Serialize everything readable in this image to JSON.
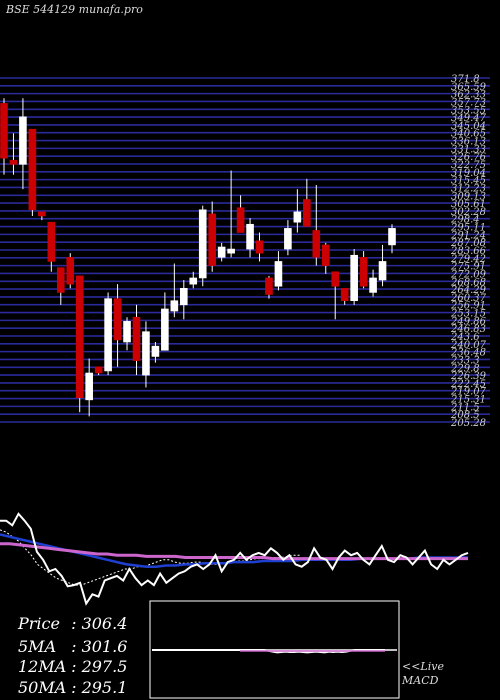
{
  "header": {
    "title": "BSE 544129 munafa.pro"
  },
  "chart_data": {
    "type": "candlestick",
    "price_axis": {
      "labels": [
        "371.8",
        "365.59",
        "362.33",
        "357.73",
        "353.55",
        "349.47",
        "345.04",
        "340.65",
        "336.13",
        "331.33",
        "326.76",
        "322.75",
        "319.04",
        "315.45",
        "312.23",
        "309.13",
        "305.61",
        "302.28",
        "298.4",
        "295.11",
        "291.24",
        "287.08",
        "283.66",
        "279.42",
        "275.91",
        "272.09",
        "268.68",
        "264.29",
        "260.37",
        "256.91",
        "253.15",
        "249.86",
        "246.83",
        "243.6",
        "240.07",
        "236.48",
        "233.3",
        "229.8",
        "226.39",
        "222.45",
        "219.07",
        "215.31",
        "211.5",
        "208.5",
        "205.28"
      ],
      "ylim": [
        205.28,
        371.8
      ]
    },
    "candles": [
      {
        "o": 359.5,
        "h": 362.0,
        "l": 325.0,
        "c": 333.0
      },
      {
        "o": 332.0,
        "h": 345.0,
        "l": 325.0,
        "c": 330.0
      },
      {
        "o": 330.0,
        "h": 362.0,
        "l": 318.0,
        "c": 353.0
      },
      {
        "o": 347.0,
        "h": 347.0,
        "l": 305.0,
        "c": 308.0
      },
      {
        "o": 307.0,
        "h": 307.0,
        "l": 303.0,
        "c": 305.0
      },
      {
        "o": 302.0,
        "h": 302.0,
        "l": 278.0,
        "c": 283.0
      },
      {
        "o": 280.0,
        "h": 280.0,
        "l": 262.0,
        "c": 268.0
      },
      {
        "o": 285.0,
        "h": 287.0,
        "l": 270.0,
        "c": 272.0
      },
      {
        "o": 276.0,
        "h": 276.0,
        "l": 210.0,
        "c": 217.0
      },
      {
        "o": 216.0,
        "h": 236.0,
        "l": 208.0,
        "c": 229.0
      },
      {
        "o": 232.0,
        "h": 232.0,
        "l": 228.0,
        "c": 229.0
      },
      {
        "o": 230.0,
        "h": 268.0,
        "l": 228.0,
        "c": 265.0
      },
      {
        "o": 265.0,
        "h": 272.0,
        "l": 232.0,
        "c": 245.0
      },
      {
        "o": 244.0,
        "h": 256.0,
        "l": 240.0,
        "c": 254.0
      },
      {
        "o": 256.0,
        "h": 262.0,
        "l": 228.0,
        "c": 235.0
      },
      {
        "o": 228.0,
        "h": 254.0,
        "l": 222.0,
        "c": 249.0
      },
      {
        "o": 237.0,
        "h": 244.0,
        "l": 234.0,
        "c": 242.0
      },
      {
        "o": 240.0,
        "h": 268.0,
        "l": 240.0,
        "c": 260.0
      },
      {
        "o": 259.0,
        "h": 282.0,
        "l": 256.0,
        "c": 264.0
      },
      {
        "o": 262.0,
        "h": 274.0,
        "l": 255.0,
        "c": 270.0
      },
      {
        "o": 272.0,
        "h": 278.0,
        "l": 270.0,
        "c": 275.0
      },
      {
        "o": 275.0,
        "h": 310.0,
        "l": 271.0,
        "c": 308.0
      },
      {
        "o": 306.0,
        "h": 312.0,
        "l": 278.0,
        "c": 281.0
      },
      {
        "o": 285.0,
        "h": 292.0,
        "l": 283.0,
        "c": 290.0
      },
      {
        "o": 287.0,
        "h": 327.0,
        "l": 285.0,
        "c": 289.0
      },
      {
        "o": 309.0,
        "h": 315.0,
        "l": 297.0,
        "c": 297.0
      },
      {
        "o": 289.0,
        "h": 304.0,
        "l": 285.0,
        "c": 301.0
      },
      {
        "o": 293.0,
        "h": 297.0,
        "l": 283.0,
        "c": 287.0
      },
      {
        "o": 275.0,
        "h": 276.0,
        "l": 265.0,
        "c": 267.0
      },
      {
        "o": 271.0,
        "h": 288.0,
        "l": 269.0,
        "c": 283.0
      },
      {
        "o": 289.0,
        "h": 303.0,
        "l": 286.0,
        "c": 299.0
      },
      {
        "o": 302.0,
        "h": 318.0,
        "l": 297.0,
        "c": 307.0
      },
      {
        "o": 313.0,
        "h": 323.0,
        "l": 300.0,
        "c": 300.0
      },
      {
        "o": 298.0,
        "h": 320.0,
        "l": 281.0,
        "c": 285.0
      },
      {
        "o": 291.0,
        "h": 292.0,
        "l": 277.0,
        "c": 281.0
      },
      {
        "o": 278.0,
        "h": 278.0,
        "l": 255.0,
        "c": 271.0
      },
      {
        "o": 270.0,
        "h": 270.0,
        "l": 262.0,
        "c": 264.0
      },
      {
        "o": 264.0,
        "h": 289.0,
        "l": 262.0,
        "c": 286.0
      },
      {
        "o": 285.0,
        "h": 288.0,
        "l": 270.0,
        "c": 271.0
      },
      {
        "o": 268.0,
        "h": 279.0,
        "l": 266.0,
        "c": 275.0
      },
      {
        "o": 274.0,
        "h": 291.0,
        "l": 271.0,
        "c": 283.0
      },
      {
        "o": 291.0,
        "h": 301.0,
        "l": 287.0,
        "c": 299.0
      }
    ],
    "indicators": {
      "price_line": [
        0.18,
        0.18,
        0.22,
        0.12,
        0.18,
        0.25,
        0.45,
        0.52,
        0.62,
        0.6,
        0.66,
        0.75,
        0.74,
        0.72,
        0.9,
        0.82,
        0.84,
        0.7,
        0.68,
        0.66,
        0.7,
        0.6,
        0.68,
        0.74,
        0.7,
        0.74,
        0.64,
        0.72,
        0.68,
        0.64,
        0.62,
        0.58,
        0.56,
        0.6,
        0.56,
        0.48,
        0.62,
        0.54,
        0.52,
        0.46,
        0.52,
        0.48,
        0.46,
        0.48,
        0.42,
        0.46,
        0.52,
        0.48,
        0.56,
        0.58,
        0.54,
        0.42,
        0.5,
        0.52,
        0.6,
        0.5,
        0.44,
        0.48,
        0.46,
        0.52,
        0.56,
        0.48,
        0.4,
        0.52,
        0.54,
        0.48,
        0.5,
        0.56,
        0.5,
        0.44,
        0.56,
        0.6,
        0.52,
        0.56,
        0.52,
        0.48,
        0.46
      ],
      "ma_long": [
        0.38,
        0.38,
        0.39,
        0.4,
        0.41,
        0.42,
        0.43,
        0.44,
        0.45,
        0.46,
        0.47,
        0.47,
        0.48,
        0.48,
        0.48,
        0.49,
        0.49,
        0.49,
        0.49,
        0.5,
        0.5,
        0.5,
        0.5,
        0.5,
        0.5,
        0.5,
        0.5,
        0.5,
        0.51,
        0.51,
        0.51,
        0.51,
        0.51,
        0.51,
        0.51,
        0.51,
        0.51,
        0.51,
        0.51,
        0.51,
        0.51,
        0.51,
        0.51,
        0.51,
        0.51,
        0.51,
        0.51,
        0.51,
        0.51
      ],
      "ma_mid": [
        0.3,
        0.32,
        0.34,
        0.36,
        0.38,
        0.4,
        0.42,
        0.44,
        0.46,
        0.48,
        0.5,
        0.52,
        0.54,
        0.56,
        0.57,
        0.58,
        0.58,
        0.57,
        0.57,
        0.56,
        0.56,
        0.55,
        0.55,
        0.55,
        0.54,
        0.54,
        0.54,
        0.53,
        0.53,
        0.53,
        0.53,
        0.52,
        0.52,
        0.52,
        0.52,
        0.52,
        0.52,
        0.51,
        0.51,
        0.51,
        0.51,
        0.51,
        0.51,
        0.5,
        0.5,
        0.5,
        0.5,
        0.5,
        0.5
      ],
      "ma_fast": [
        0.26,
        0.28,
        0.32,
        0.36,
        0.42,
        0.48,
        0.56,
        0.6,
        0.64,
        0.68,
        0.7,
        0.72,
        0.74,
        0.74,
        0.72,
        0.7,
        0.68,
        0.66,
        0.64,
        0.62,
        0.6,
        0.6,
        0.58,
        0.58,
        0.56,
        0.54,
        0.52,
        0.52,
        0.54,
        0.55,
        0.55,
        0.54,
        0.54,
        0.55,
        0.56,
        0.56,
        0.55,
        0.54,
        0.53,
        0.53,
        0.52,
        0.51,
        0.51,
        0.5,
        0.5,
        0.5,
        0.49,
        0.48,
        0.48
      ]
    },
    "macd_line": [
      0.5,
      0.5,
      0.5,
      0.5,
      0.5,
      0.5,
      0.5,
      0.5,
      0.5,
      0.5,
      0.5,
      0.5,
      0.5,
      0.5,
      0.5,
      0.5,
      0.5,
      0.5,
      0.5,
      0.5,
      0.5,
      0.5,
      0.5,
      0.5,
      0.5,
      0.5,
      0.5,
      0.52,
      0.54,
      0.56,
      0.55,
      0.54,
      0.55,
      0.55,
      0.54,
      0.55,
      0.56,
      0.55,
      0.54,
      0.55,
      0.56,
      0.54,
      0.55,
      0.54,
      0.55,
      0.54,
      0.52,
      0.5,
      0.5,
      0.5,
      0.5,
      0.5,
      0.5,
      0.5,
      0.5
    ],
    "colors": {
      "up": "#ffffff",
      "down": "#cc0000",
      "grid": "#2a2a9a",
      "ma_long": "#cc66cc",
      "ma_mid": "#1f3fd0"
    }
  },
  "stats": {
    "price_label": "Price",
    "price_value": ": 306.4",
    "ma5_label": "5MA",
    "ma5_value": ": 301.6",
    "ma12_label": "12MA",
    "ma12_value": ": 297.5",
    "ma50_label": "50MA",
    "ma50_value": ": 295.1"
  },
  "macd": {
    "line1": "<<Live",
    "line2": "MACD"
  }
}
